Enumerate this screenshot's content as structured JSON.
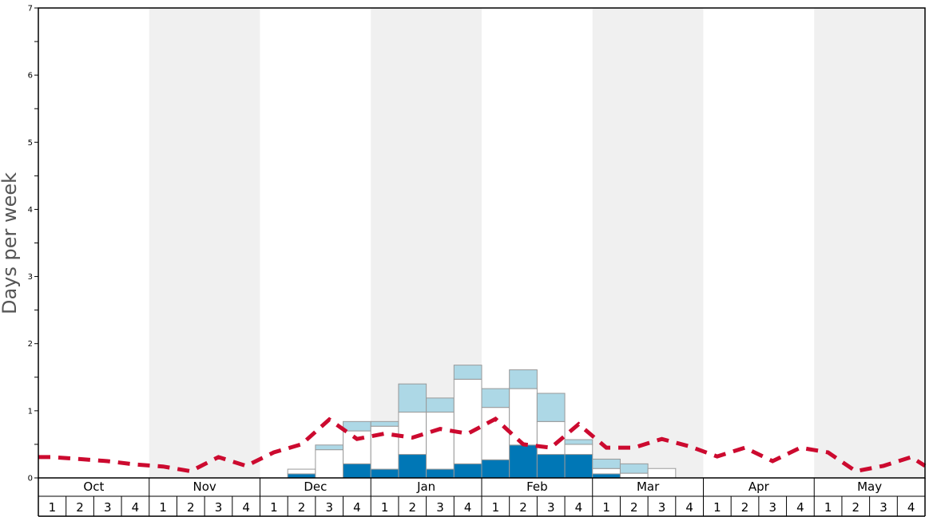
{
  "chart_data": {
    "type": "bar",
    "ylabel": "Days per week",
    "ylim": [
      0,
      7
    ],
    "yticks": [
      "0",
      "1",
      "2",
      "3",
      "4",
      "5",
      "6",
      "7"
    ],
    "months": [
      "Oct",
      "Nov",
      "Dec",
      "Jan",
      "Feb",
      "Mar",
      "Apr",
      "May"
    ],
    "weeks": [
      "1",
      "2",
      "3",
      "4"
    ],
    "colors": {
      "dark_segment": "#0077b6",
      "white_segment": "#ffffff",
      "light_segment": "#add8e6",
      "average_line": "#cc0a2f",
      "shade_band": "#f0f0f0"
    },
    "series": [
      {
        "values": [
          0,
          0,
          0,
          0,
          0,
          0,
          0,
          0,
          0,
          0.06,
          0,
          0.21,
          0.13,
          0.35,
          0.13,
          0.21,
          0.27,
          0.49,
          0.35,
          0.35,
          0.06,
          0,
          0,
          0,
          0,
          0,
          0,
          0,
          0,
          0,
          0,
          0
        ]
      },
      {
        "values": [
          0,
          0,
          0,
          0,
          0,
          0,
          0,
          0,
          0,
          0.07,
          0.42,
          0.49,
          0.64,
          0.63,
          0.85,
          1.26,
          0.78,
          0.84,
          0.49,
          0.15,
          0.08,
          0.07,
          0.14,
          0,
          0,
          0,
          0,
          0,
          0,
          0,
          0,
          0
        ]
      },
      {
        "values": [
          0,
          0,
          0,
          0,
          0,
          0,
          0,
          0,
          0,
          0,
          0.07,
          0.14,
          0.07,
          0.42,
          0.21,
          0.21,
          0.28,
          0.28,
          0.42,
          0.07,
          0.14,
          0.14,
          0,
          0,
          0,
          0,
          0,
          0,
          0,
          0,
          0,
          0
        ]
      },
      {
        "values": [
          0.31,
          0.28,
          0.25,
          0.2,
          0.17,
          0.1,
          0.31,
          0.18,
          0.38,
          0.5,
          0.87,
          0.58,
          0.66,
          0.6,
          0.73,
          0.66,
          0.88,
          0.5,
          0.45,
          0.8,
          0.45,
          0.45,
          0.58,
          0.47,
          0.32,
          0.45,
          0.25,
          0.45,
          0.38,
          0.1,
          0.18,
          0.31
        ]
      }
    ],
    "average_last_point": 0.18
  }
}
